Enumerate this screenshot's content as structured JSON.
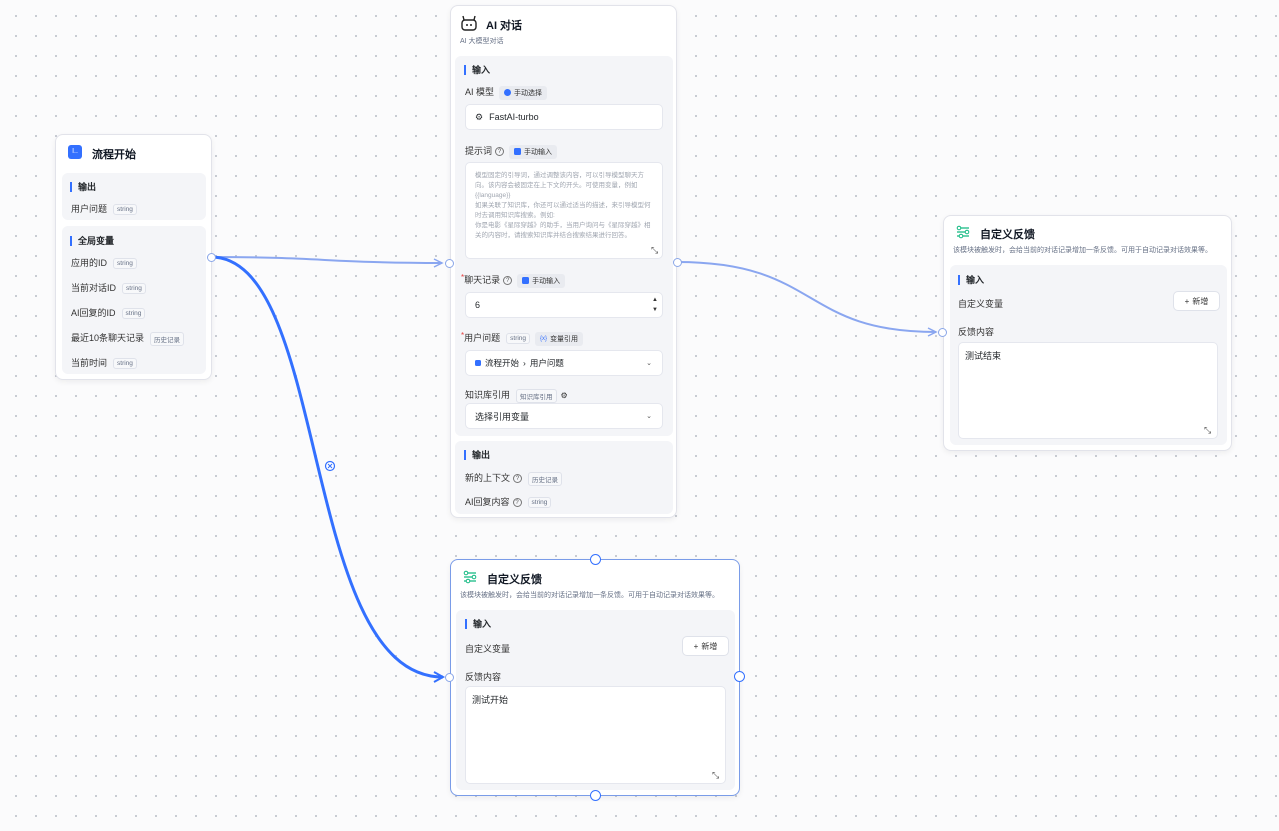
{
  "start_node": {
    "title": "流程开始",
    "output_label": "输出",
    "output_fields": [
      {
        "name": "用户问题",
        "type": "string"
      }
    ],
    "globals_label": "全局变量",
    "globals": [
      {
        "name": "应用的ID",
        "type": "string"
      },
      {
        "name": "当前对话ID",
        "type": "string"
      },
      {
        "name": "AI回复的ID",
        "type": "string"
      },
      {
        "name": "最近10条聊天记录",
        "type": "历史记录"
      },
      {
        "name": "当前时间",
        "type": "string"
      }
    ]
  },
  "ai_node": {
    "title": "AI 对话",
    "desc": "AI 大模型对话",
    "input_label": "输入",
    "model_label": "AI 模型",
    "model_mode": "手动选择",
    "model_value": "FastAI-turbo",
    "prompt_label": "提示词",
    "prompt_mode": "手动输入",
    "prompt_placeholder": "模型固定的引导词，通过调整该内容，可以引导模型聊天方向。该内容会被固定在上下文的开头。可使用变量，例如 {{language}}\n如果关联了知识库，你还可以通过适当的描述，来引导模型何时去调用知识库搜索。例如:\n你是电影《星际穿越》的助手，当用户询问与《星际穿越》相关的内容时，请搜索知识库并结合搜索结果进行回答。",
    "history_label": "聊天记录",
    "history_mode": "手动输入",
    "history_value": "6",
    "question_label": "用户问题",
    "question_type": "string",
    "question_mode": "变量引用",
    "question_ref_node": "流程开始",
    "question_ref_field": "用户问题",
    "kb_label": "知识库引用",
    "kb_type": "知识库引用",
    "kb_placeholder": "选择引用变量",
    "output_label": "输出",
    "outputs": [
      {
        "name": "新的上下文",
        "type": "历史记录"
      },
      {
        "name": "AI回复内容",
        "type": "string"
      }
    ]
  },
  "feedback_nodes": [
    {
      "title": "自定义反馈",
      "desc": "该模块被触发时，会给当前的对话记录增加一条反馈。可用于自动记录对话效果等。",
      "input_label": "输入",
      "var_label": "自定义变量",
      "add_label": "新增",
      "content_label": "反馈内容",
      "content_value": "测试结束"
    },
    {
      "title": "自定义反馈",
      "desc": "该模块被触发时，会给当前的对话记录增加一条反馈。可用于自动记录对话效果等。",
      "input_label": "输入",
      "var_label": "自定义变量",
      "add_label": "新增",
      "content_label": "反馈内容",
      "content_value": "测试开始"
    }
  ],
  "colors": {
    "accent": "#3370ff",
    "edge": "#8aa6f0",
    "feedback_icon": "#10b981"
  }
}
